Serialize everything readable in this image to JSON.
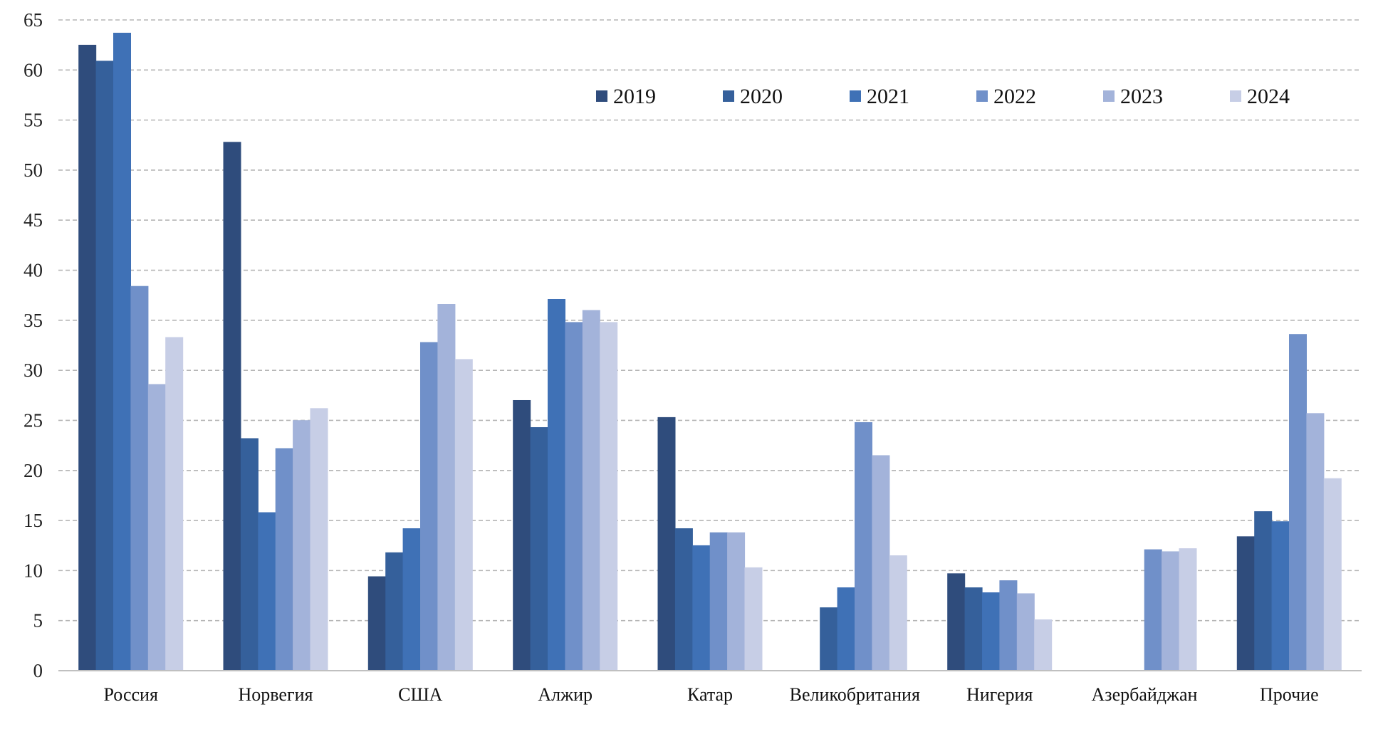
{
  "chart_data": {
    "type": "bar",
    "title": "",
    "xlabel": "",
    "ylabel": "",
    "ylim": [
      0,
      65
    ],
    "yticks": [
      0,
      5,
      10,
      15,
      20,
      25,
      30,
      35,
      40,
      45,
      50,
      55,
      60,
      65
    ],
    "ytick_labels": [
      "0",
      "5",
      "10",
      "15",
      "20",
      "25",
      "30",
      "35",
      "40",
      "45",
      "50",
      "55",
      "60",
      "65"
    ],
    "grid": true,
    "legend_position": "top-right",
    "categories": [
      "Россия",
      "Норвегия",
      "США",
      "Алжир",
      "Катар",
      "Великобритания",
      "Нигерия",
      "Азербайджан",
      "Прочие"
    ],
    "series": [
      {
        "name": "2019",
        "color": "#2f4c7c",
        "values": [
          62.5,
          52.8,
          9.4,
          27.0,
          25.3,
          0,
          9.7,
          0,
          13.4
        ]
      },
      {
        "name": "2020",
        "color": "#35609b",
        "values": [
          60.9,
          23.2,
          11.8,
          24.3,
          14.2,
          6.3,
          8.3,
          0,
          15.9
        ]
      },
      {
        "name": "2021",
        "color": "#3f71b6",
        "values": [
          63.7,
          15.8,
          14.2,
          37.1,
          12.5,
          8.3,
          7.8,
          0,
          14.9
        ]
      },
      {
        "name": "2022",
        "color": "#7090c9",
        "values": [
          38.4,
          22.2,
          32.8,
          34.8,
          13.8,
          24.8,
          9.0,
          12.1,
          33.6
        ]
      },
      {
        "name": "2023",
        "color": "#a3b3da",
        "values": [
          28.6,
          25.0,
          36.6,
          36.0,
          13.8,
          21.5,
          7.7,
          11.9,
          25.7
        ]
      },
      {
        "name": "2024",
        "color": "#c7cee6",
        "values": [
          33.3,
          26.2,
          31.1,
          34.8,
          10.3,
          11.5,
          5.1,
          12.2,
          19.2
        ]
      }
    ]
  }
}
